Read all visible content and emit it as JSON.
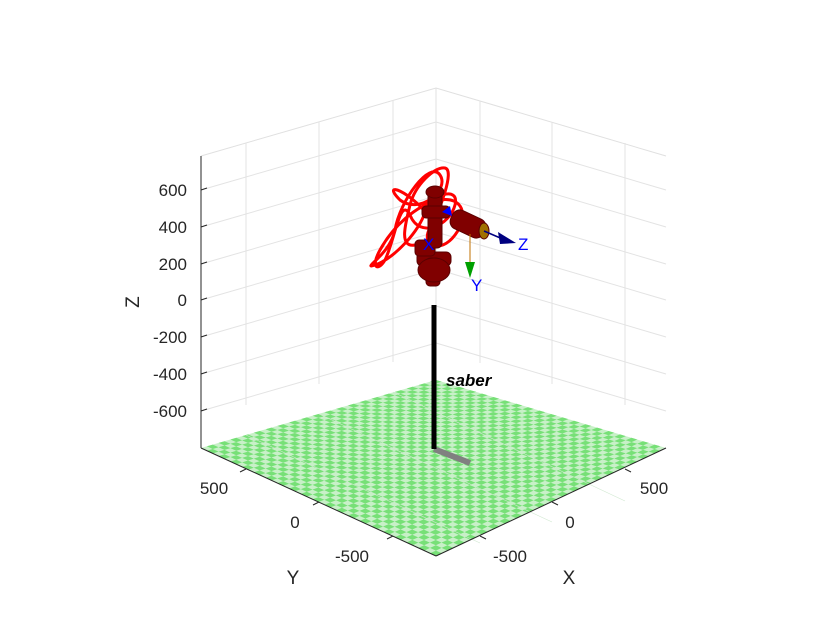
{
  "axes": {
    "z_label": "Z",
    "y_label": "Y",
    "x_label": "X",
    "z_ticks": [
      "600",
      "400",
      "200",
      "0",
      "-200",
      "-400",
      "-600"
    ],
    "y_ticks": [
      "500",
      "0",
      "-500"
    ],
    "x_ticks": [
      "-500",
      "0",
      "500"
    ],
    "grid": true
  },
  "floor": {
    "checker_light": "#c8f0c8",
    "checker_dark": "#77e077"
  },
  "robot": {
    "link_color": "#800000",
    "pedestal_color": "#000000",
    "base_plate_color": "#808080"
  },
  "trajectory": {
    "color": "#ff0000"
  },
  "frame_labels": {
    "z": "Z",
    "y": "Y",
    "x": "X"
  },
  "frame_colors": {
    "z": "#000080",
    "y": "#00a000",
    "x": "#0000ff"
  },
  "robot_name": "saber"
}
